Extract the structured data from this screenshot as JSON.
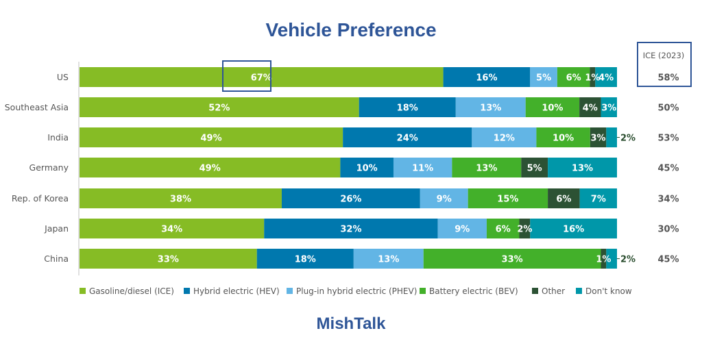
{
  "header": {
    "title": "Vehicle Preference"
  },
  "footer": {
    "brand": "MishTalk"
  },
  "chart_data": {
    "type": "bar",
    "orientation": "horizontal",
    "stacked": true,
    "title": "Vehicle Preference",
    "xlabel": "",
    "ylabel": "",
    "xlim": [
      0,
      100
    ],
    "grid": false,
    "legend_position": "bottom",
    "categories": [
      "US",
      "Southeast Asia",
      "India",
      "Germany",
      "Rep. of Korea",
      "Japan",
      "China"
    ],
    "series": [
      {
        "name": "Gasoline/diesel (ICE)",
        "color": "#86bc25",
        "values": [
          67,
          52,
          49,
          49,
          38,
          34,
          33
        ]
      },
      {
        "name": "Hybrid electric (HEV)",
        "color": "#0078ae",
        "values": [
          16,
          18,
          24,
          10,
          26,
          32,
          18
        ]
      },
      {
        "name": "Plug-in hybrid electric (PHEV)",
        "color": "#62b5e5",
        "values": [
          5,
          13,
          12,
          11,
          9,
          9,
          13
        ]
      },
      {
        "name": "Battery electric (BEV)",
        "color": "#43b02a",
        "values": [
          6,
          10,
          10,
          13,
          15,
          6,
          33
        ]
      },
      {
        "name": "Other",
        "color": "#2c5234",
        "values": [
          1,
          4,
          3,
          5,
          6,
          2,
          1
        ]
      },
      {
        "name": "Don't know",
        "color": "#0097a9",
        "values": [
          4,
          3,
          2,
          13,
          7,
          16,
          2
        ]
      }
    ],
    "outside_labels": [
      {
        "category": "India",
        "series": "Don't know",
        "text": "2%"
      },
      {
        "category": "China",
        "series": "Don't know",
        "text": "2%"
      }
    ],
    "side_column": {
      "header": "ICE (2023)",
      "values": [
        "58%",
        "50%",
        "53%",
        "45%",
        "34%",
        "30%",
        "45%"
      ]
    },
    "annotations": [
      {
        "type": "highlight-box",
        "target": "US ICE value 67%"
      },
      {
        "type": "highlight-box",
        "target": "ICE (2023) header and US value 58%"
      }
    ]
  }
}
